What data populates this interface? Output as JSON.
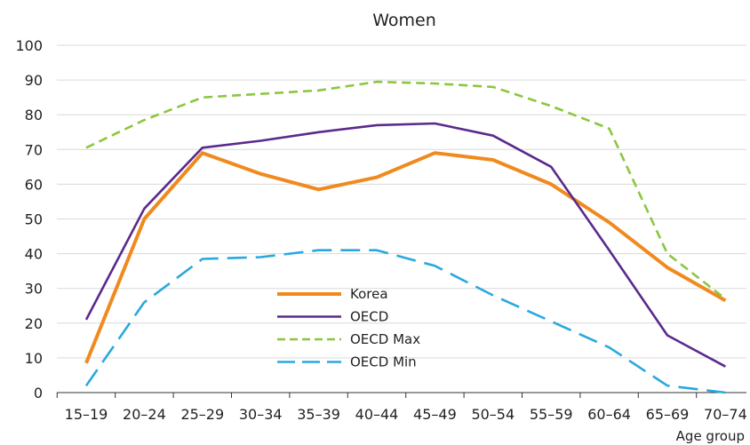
{
  "chart_data": {
    "type": "line",
    "title": "Women",
    "xlabel": "Age group",
    "ylabel": "",
    "ylim": [
      0,
      100
    ],
    "yticks": [
      0,
      10,
      20,
      30,
      40,
      50,
      60,
      70,
      80,
      90,
      100
    ],
    "categories": [
      "15–19",
      "20–24",
      "25–29",
      "30–34",
      "35–39",
      "40–44",
      "45–49",
      "50–54",
      "55–59",
      "60–64",
      "65–69",
      "70–74"
    ],
    "grid": "horizontal",
    "legend_position": "lower-center",
    "series": [
      {
        "name": "Korea",
        "color": "#F08A1E",
        "style": "solid",
        "values": [
          8.5,
          50,
          69,
          63,
          58.5,
          62,
          69,
          67,
          60,
          49,
          36,
          26.5
        ]
      },
      {
        "name": "OECD",
        "color": "#5B2A8C",
        "style": "solid",
        "values": [
          21,
          53,
          70.5,
          72.5,
          75,
          77,
          77.5,
          74,
          65,
          41,
          16.5,
          7.5
        ]
      },
      {
        "name": "OECD Max",
        "color": "#8CC63F",
        "style": "dashed-short",
        "values": [
          70.5,
          78.5,
          85,
          86,
          87,
          89.5,
          89,
          88,
          82.5,
          76,
          40,
          27
        ]
      },
      {
        "name": "OECD Min",
        "color": "#29A8DF",
        "style": "dashed-long",
        "values": [
          2,
          26,
          38.5,
          39,
          41,
          41,
          36.5,
          28,
          20.5,
          13,
          2,
          0
        ]
      }
    ]
  }
}
